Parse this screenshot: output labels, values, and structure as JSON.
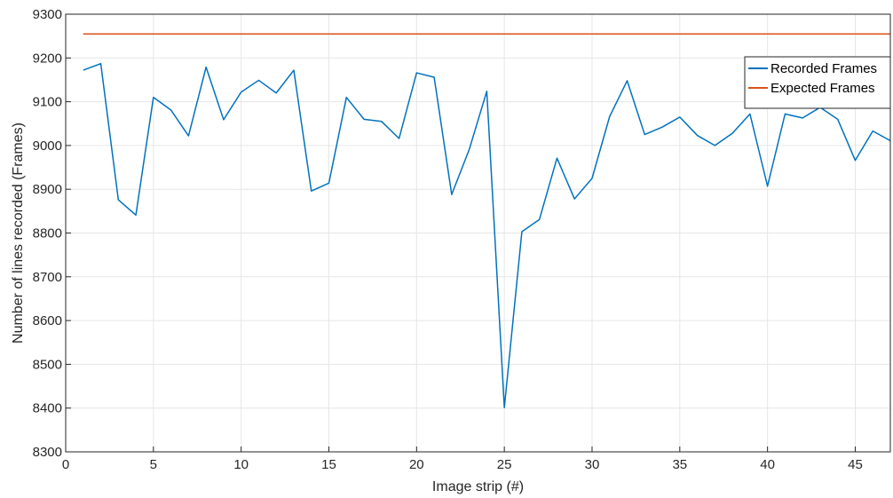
{
  "chart_data": {
    "type": "line",
    "xlabel": "Image strip (#)",
    "ylabel": "Number of lines recorded (Frames)",
    "xlim": [
      0,
      47
    ],
    "ylim": [
      8300,
      9300
    ],
    "xticks": [
      0,
      5,
      10,
      15,
      20,
      25,
      30,
      35,
      40,
      45
    ],
    "yticks": [
      8300,
      8400,
      8500,
      8600,
      8700,
      8800,
      8900,
      9000,
      9100,
      9200,
      9300
    ],
    "grid": true,
    "legend_position": "top-right",
    "series": [
      {
        "name": "Recorded Frames",
        "color": "#0072BD",
        "x": [
          1,
          2,
          3,
          4,
          5,
          6,
          7,
          8,
          9,
          10,
          11,
          12,
          13,
          14,
          15,
          16,
          17,
          18,
          19,
          20,
          21,
          22,
          23,
          24,
          25,
          26,
          27,
          28,
          29,
          30,
          31,
          32,
          33,
          34,
          35,
          36,
          37,
          38,
          39,
          40,
          41,
          42,
          43,
          44,
          45,
          46,
          47
        ],
        "values": [
          9172,
          9187,
          8876,
          8841,
          9110,
          9081,
          9022,
          9179,
          9059,
          9122,
          9149,
          9120,
          9172,
          8896,
          8914,
          9110,
          9060,
          9055,
          9016,
          9166,
          9156,
          8888,
          8991,
          9124,
          8401,
          8803,
          8831,
          8971,
          8878,
          8925,
          9066,
          9148,
          9025,
          9042,
          9065,
          9023,
          9000,
          9028,
          9072,
          8907,
          9072,
          9063,
          9087,
          9060,
          8966,
          9033,
          9011
        ]
      },
      {
        "name": "Expected Frames",
        "color": "#D95319",
        "x": [
          1,
          47
        ],
        "values": [
          9255,
          9255
        ]
      }
    ]
  }
}
